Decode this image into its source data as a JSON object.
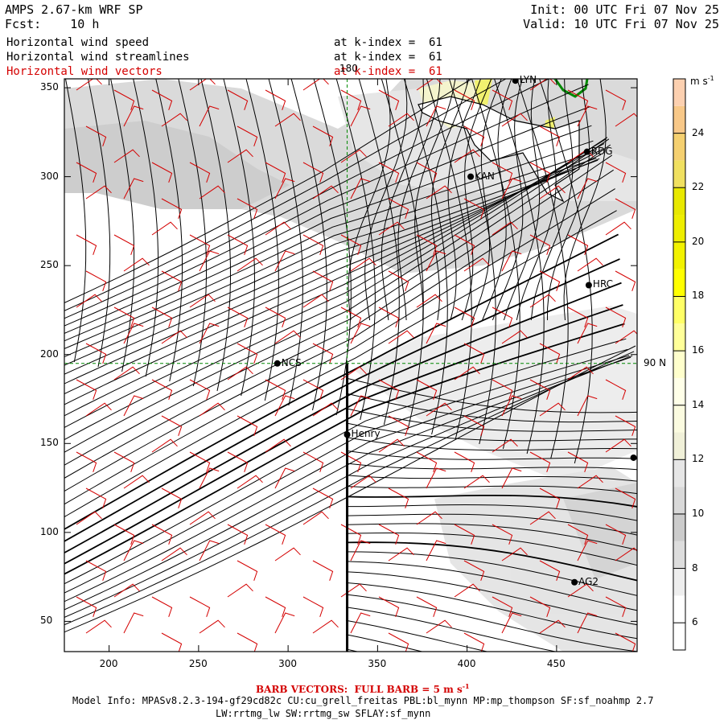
{
  "header": {
    "title": "AMPS 2.67-km WRF SP",
    "forecast_label": "Fcst:",
    "forecast_value": "10 h",
    "init": "Init: 00 UTC Fri 07 Nov 25",
    "valid": "Valid: 10 UTC Fri 07 Nov 25"
  },
  "fields": [
    {
      "name": "Horizontal wind speed",
      "level": "at k-index =  61",
      "color": "#000000"
    },
    {
      "name": "Horizontal wind streamlines",
      "level": "at k-index =  61",
      "color": "#000000"
    },
    {
      "name": "Horizontal wind vectors",
      "level": "at k-index =  61",
      "color": "#d40000"
    }
  ],
  "axes": {
    "x_ticks": [
      "200",
      "250",
      "300",
      "350",
      "400",
      "450"
    ],
    "y_ticks": [
      "50",
      "100",
      "150",
      "200",
      "250",
      "300",
      "350"
    ],
    "xlim": [
      175,
      495
    ],
    "ylim": [
      33,
      355
    ]
  },
  "gridlines": {
    "meridian_label": "180",
    "parallel_label": "90 N",
    "meridian_x": 333,
    "parallel_y": 195
  },
  "stations": [
    {
      "name": "LYN",
      "x": 427,
      "y": 354
    },
    {
      "name": "RDG",
      "x": 467,
      "y": 314
    },
    {
      "name": "KAN",
      "x": 402,
      "y": 300
    },
    {
      "name": "HRC",
      "x": 468,
      "y": 239
    },
    {
      "name": "NCS",
      "x": 294,
      "y": 195
    },
    {
      "name": "Henry",
      "x": 333,
      "y": 155
    },
    {
      "name": "",
      "x": 493,
      "y": 142
    },
    {
      "name": "AG2",
      "x": 460,
      "y": 72
    }
  ],
  "cross_section_line": {
    "x": 333,
    "y_from": 33,
    "y_to": 195
  },
  "colorbar": {
    "unit": "m s",
    "unit_exp": "-1",
    "labels": [
      "6",
      "8",
      "10",
      "12",
      "14",
      "16",
      "18",
      "20",
      "22",
      "24"
    ],
    "bins": [
      {
        "from": 5,
        "to": 7,
        "color": "#ffffff"
      },
      {
        "from": 7,
        "to": 8,
        "color": "#eeeeee"
      },
      {
        "from": 8,
        "to": 9,
        "color": "#dddddd"
      },
      {
        "from": 9,
        "to": 10,
        "color": "#cccccc"
      },
      {
        "from": 10,
        "to": 11,
        "color": "#d9d9d9"
      },
      {
        "from": 11,
        "to": 12,
        "color": "#e6e6e6"
      },
      {
        "from": 12,
        "to": 13,
        "color": "#f0f0d8"
      },
      {
        "from": 13,
        "to": 14,
        "color": "#fbfbe0"
      },
      {
        "from": 14,
        "to": 15,
        "color": "#ffffe8"
      },
      {
        "from": 15,
        "to": 16,
        "color": "#ffffcc"
      },
      {
        "from": 16,
        "to": 17,
        "color": "#ffff99"
      },
      {
        "from": 17,
        "to": 18,
        "color": "#ffff66"
      },
      {
        "from": 18,
        "to": 19,
        "color": "#ffff00"
      },
      {
        "from": 19,
        "to": 20,
        "color": "#f2f200"
      },
      {
        "from": 20,
        "to": 21,
        "color": "#eeee00"
      },
      {
        "from": 21,
        "to": 22,
        "color": "#e8e800"
      },
      {
        "from": 22,
        "to": 23,
        "color": "#f0e060"
      },
      {
        "from": 23,
        "to": 24,
        "color": "#f5d070"
      },
      {
        "from": 24,
        "to": 25,
        "color": "#f8c888"
      },
      {
        "from": 25,
        "to": 26,
        "color": "#fcd0b0"
      }
    ]
  },
  "footer": {
    "barb_note_prefix": "BARB VECTORS:  FULL BARB = 5 m s",
    "barb_note_exp": "-1",
    "model_info_1": "Model Info: MPASv8.2.3-194-gf29cd82c CU:cu_grell_freitas PBL:bl_mynn MP:mp_thompson SF:sf_noahmp 2.7",
    "model_info_2": "LW:rrtmg_lw SW:rrtmg_sw SFLAY:sf_mynn"
  },
  "colors": {
    "barbs": "#d40000",
    "streamlines": "#000000",
    "gridlines": "#008800",
    "coast": "#008800"
  }
}
